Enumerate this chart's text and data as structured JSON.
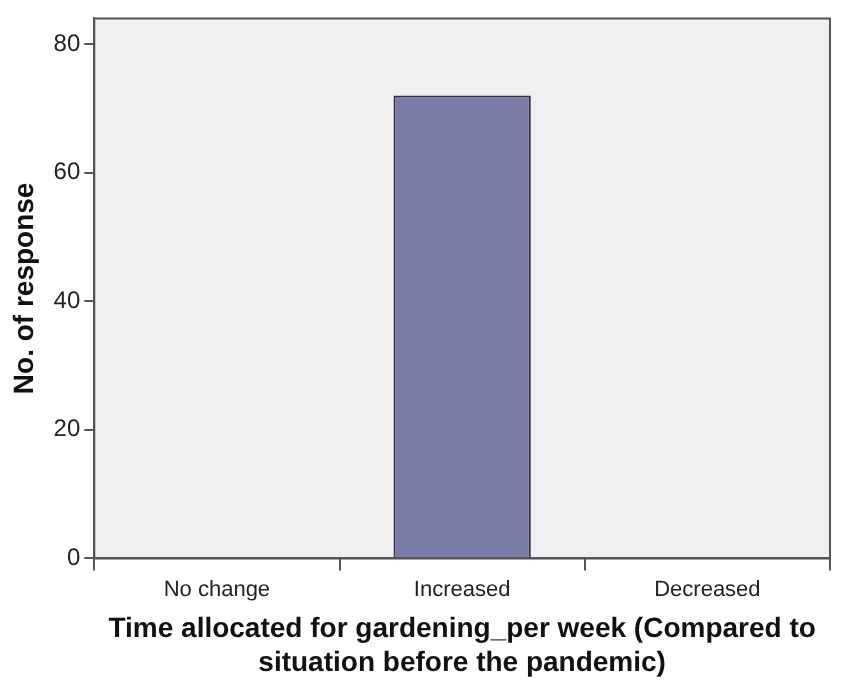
{
  "chart_data": {
    "type": "bar",
    "xlabel": "Time allocated for gardening_per week (Compared to situation before the pandemic)",
    "ylabel": "No. of response",
    "categories": [
      "No change",
      "Increased",
      "Decreased"
    ],
    "values": [
      0,
      72,
      0
    ],
    "color": "#7b7ba8",
    "ylim": [
      0,
      84
    ],
    "yticks": [
      0,
      20,
      40,
      60,
      80
    ],
    "grid": false,
    "legend": false
  }
}
